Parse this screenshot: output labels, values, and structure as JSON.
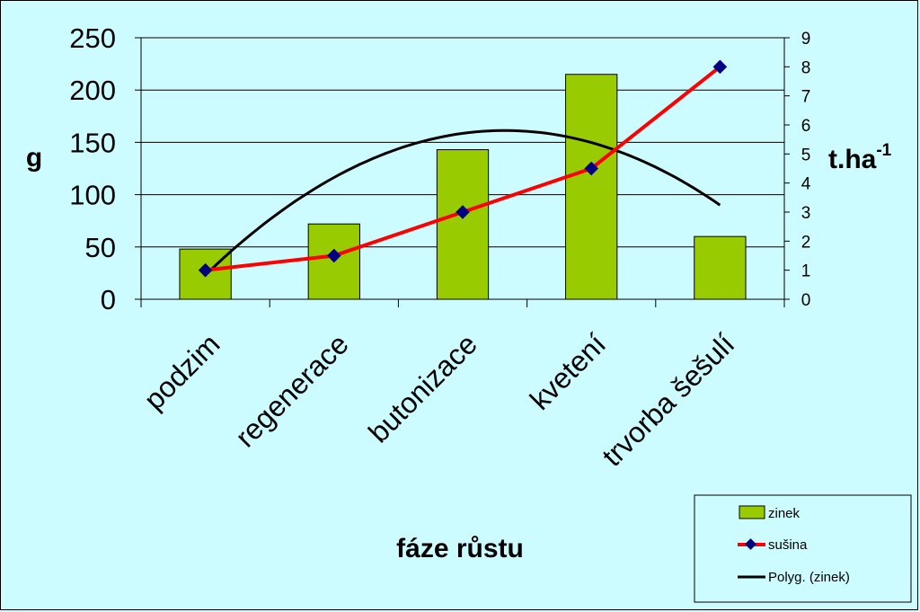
{
  "chart_data": {
    "type": "bar",
    "categories": [
      "podzim",
      "regenerace",
      "butonizace",
      "kvetení",
      "trvorba šešulí"
    ],
    "xlabel": "fáze růstu",
    "ylabel_left": "g",
    "ylabel_right_base": "t.ha",
    "ylabel_right_sup": "-1",
    "ylim_left": [
      0,
      250
    ],
    "ylim_right": [
      0,
      9
    ],
    "yticks_left": [
      "0",
      "50",
      "100",
      "150",
      "200",
      "250"
    ],
    "yticks_right": [
      "0",
      "1",
      "2",
      "3",
      "4",
      "5",
      "6",
      "7",
      "8",
      "9"
    ],
    "grid": true,
    "legend_position": "bottom-right",
    "series": [
      {
        "name": "zinek",
        "type": "bar",
        "axis": "left",
        "values": [
          48,
          72,
          143,
          215,
          60
        ],
        "color": "#99cc00"
      },
      {
        "name": "sušina",
        "type": "line",
        "axis": "right",
        "values": [
          1.0,
          1.5,
          3.0,
          4.5,
          8.0
        ],
        "color": "#ff0000",
        "marker_color": "#000080"
      },
      {
        "name": "Polyg. (zinek)",
        "type": "trendline",
        "axis": "left",
        "polynomial_order": 2,
        "color": "#000000"
      }
    ]
  }
}
